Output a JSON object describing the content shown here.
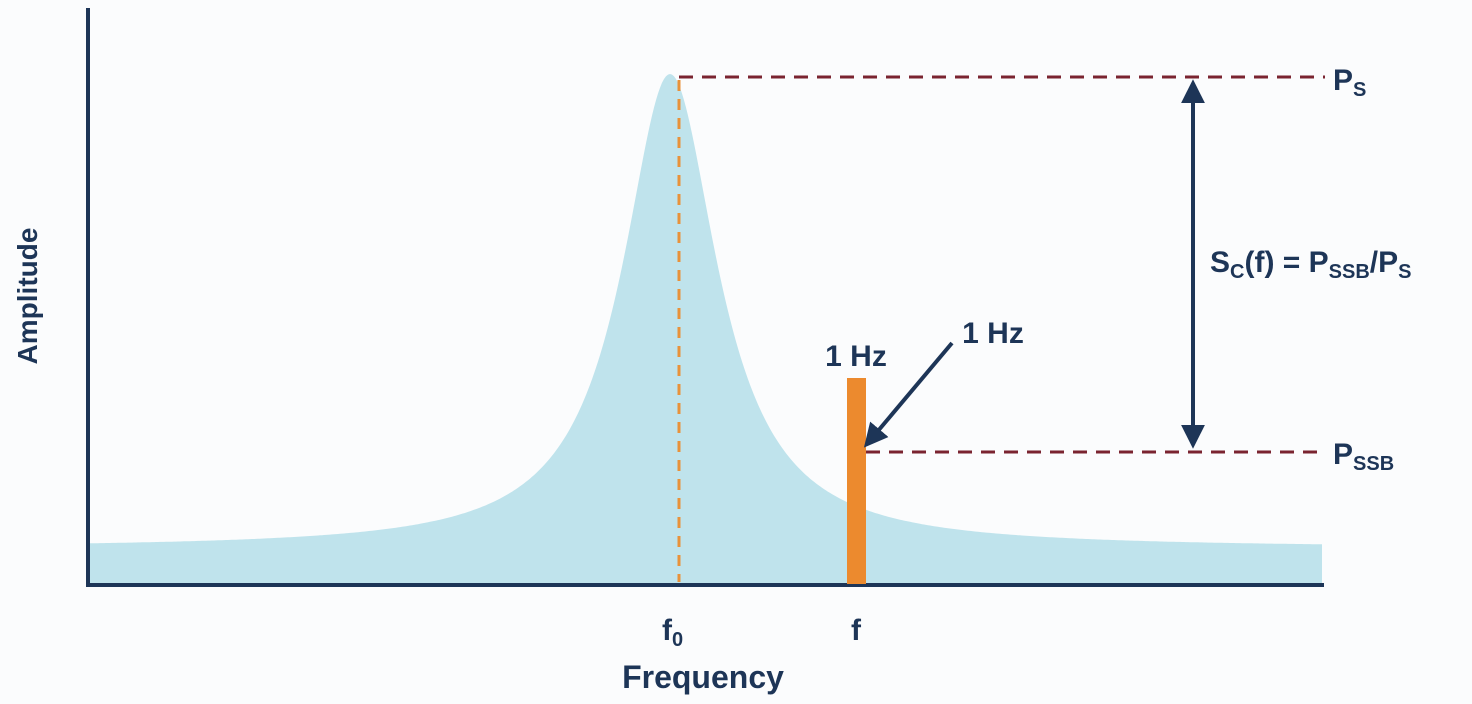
{
  "axes": {
    "y_label": "Amplitude",
    "x_label": "Frequency"
  },
  "ticks": {
    "f0_base": "f",
    "f0_sub": "0",
    "f": "f"
  },
  "levels": {
    "ps_base": "P",
    "ps_sub": "S",
    "pssb_base": "P",
    "pssb_sub": "SSB"
  },
  "formula": {
    "s": "S",
    "s_sub": "C",
    "mid": "(f) = P",
    "pssb_sub": "SSB",
    "slash": "/P",
    "ps_sub": "S"
  },
  "bandwidth": {
    "bar_label": "1 Hz",
    "arrow_label": "1 Hz"
  },
  "colors": {
    "axis": "#1d3557",
    "curve_fill": "#bfe3ec",
    "peak_marker": "#e8923a",
    "bar": "#ec8a2e",
    "level_line": "#7a2430",
    "arrow": "#1d3557"
  }
}
